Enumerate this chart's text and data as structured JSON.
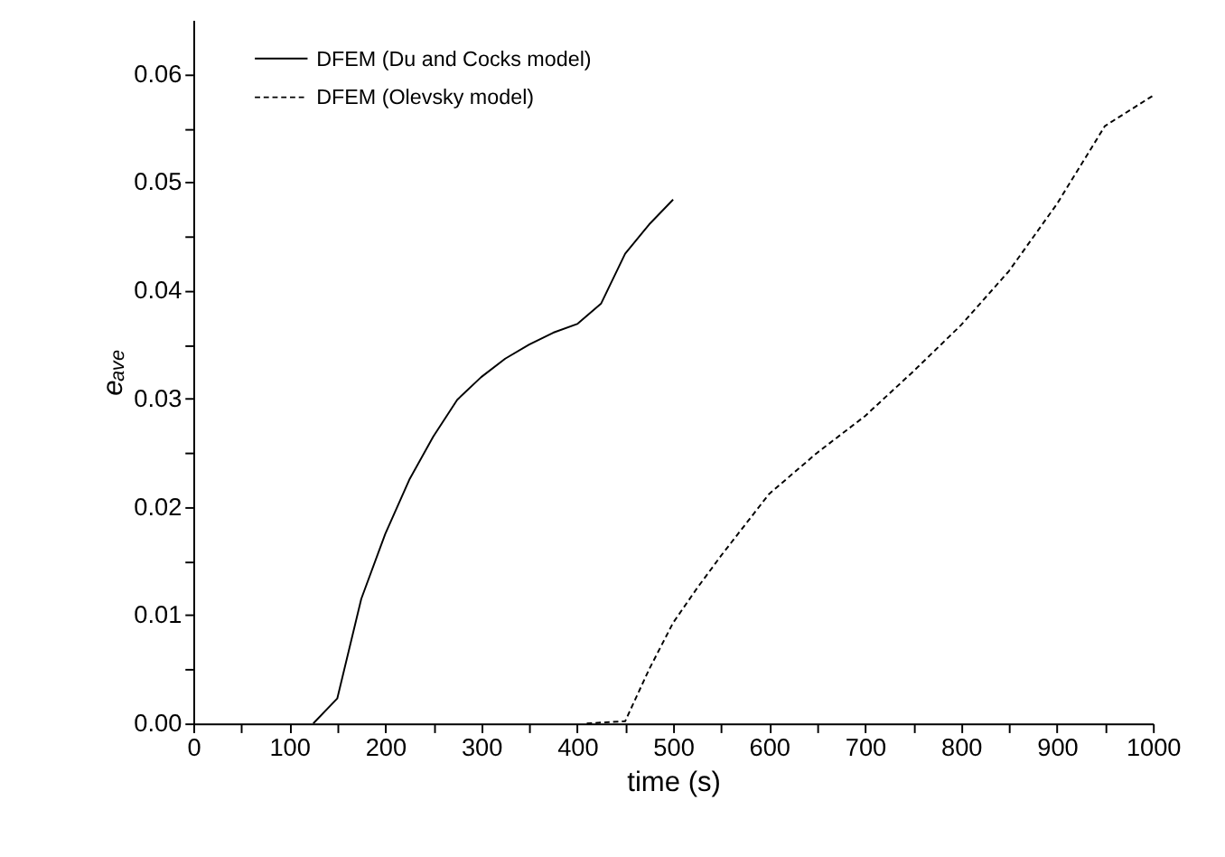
{
  "chart_data": {
    "type": "line",
    "xlabel": "time (s)",
    "ylabel": "eₐᵥₑ",
    "xlim": [
      0,
      1000
    ],
    "ylim": [
      0,
      0.065
    ],
    "xticks": [
      0,
      {
        "value": 50,
        "label": null
      },
      100,
      {
        "value": 150,
        "label": null
      },
      200,
      {
        "value": 250,
        "label": null
      },
      300,
      {
        "value": 350,
        "label": null
      },
      400,
      {
        "value": 450,
        "label": null
      },
      500,
      {
        "value": 550,
        "label": null
      },
      600,
      {
        "value": 650,
        "label": null
      },
      700,
      {
        "value": 750,
        "label": null
      },
      800,
      {
        "value": 850,
        "label": null
      },
      900,
      {
        "value": 950,
        "label": null
      },
      1000
    ],
    "yticks": [
      {
        "value": 0,
        "label": "0.00"
      },
      {
        "value": 0.005,
        "label": null
      },
      {
        "value": 0.01,
        "label": "0.01"
      },
      {
        "value": 0.015,
        "label": null
      },
      {
        "value": 0.02,
        "label": "0.02"
      },
      {
        "value": 0.025,
        "label": null
      },
      {
        "value": 0.03,
        "label": "0.03"
      },
      {
        "value": 0.035,
        "label": null
      },
      {
        "value": 0.04,
        "label": "0.04"
      },
      {
        "value": 0.045,
        "label": null
      },
      {
        "value": 0.05,
        "label": "0.05"
      },
      {
        "value": 0.055,
        "label": null
      },
      {
        "value": 0.06,
        "label": "0.06"
      }
    ],
    "grid": false,
    "legend": "top left",
    "marker": "none",
    "series": [
      {
        "name": "DFEM (Du and Cocks model)",
        "color": "#000000",
        "line_style": "solid",
        "x": [
          125,
          150,
          175,
          200,
          225,
          250,
          275,
          300,
          325,
          350,
          375,
          400,
          425,
          450,
          475,
          500
        ],
        "values": [
          0,
          0.0023,
          0.0115,
          0.0175,
          0.0225,
          0.0265,
          0.0299,
          0.032,
          0.0337,
          0.035,
          0.0361,
          0.0369,
          0.0388,
          0.0434,
          0.0461,
          0.0484
        ]
      },
      {
        "name": "DFEM (Olevsky model)",
        "color": "#000000",
        "line_style": "dashed",
        "x": [
          410,
          450,
          475,
          500,
          525,
          550,
          600,
          650,
          700,
          750,
          800,
          850,
          900,
          950,
          1000
        ],
        "values": [
          0,
          0.0002,
          0.005,
          0.0093,
          0.0125,
          0.0155,
          0.0212,
          0.025,
          0.0284,
          0.0325,
          0.0368,
          0.0418,
          0.048,
          0.0552,
          0.058
        ]
      }
    ]
  }
}
